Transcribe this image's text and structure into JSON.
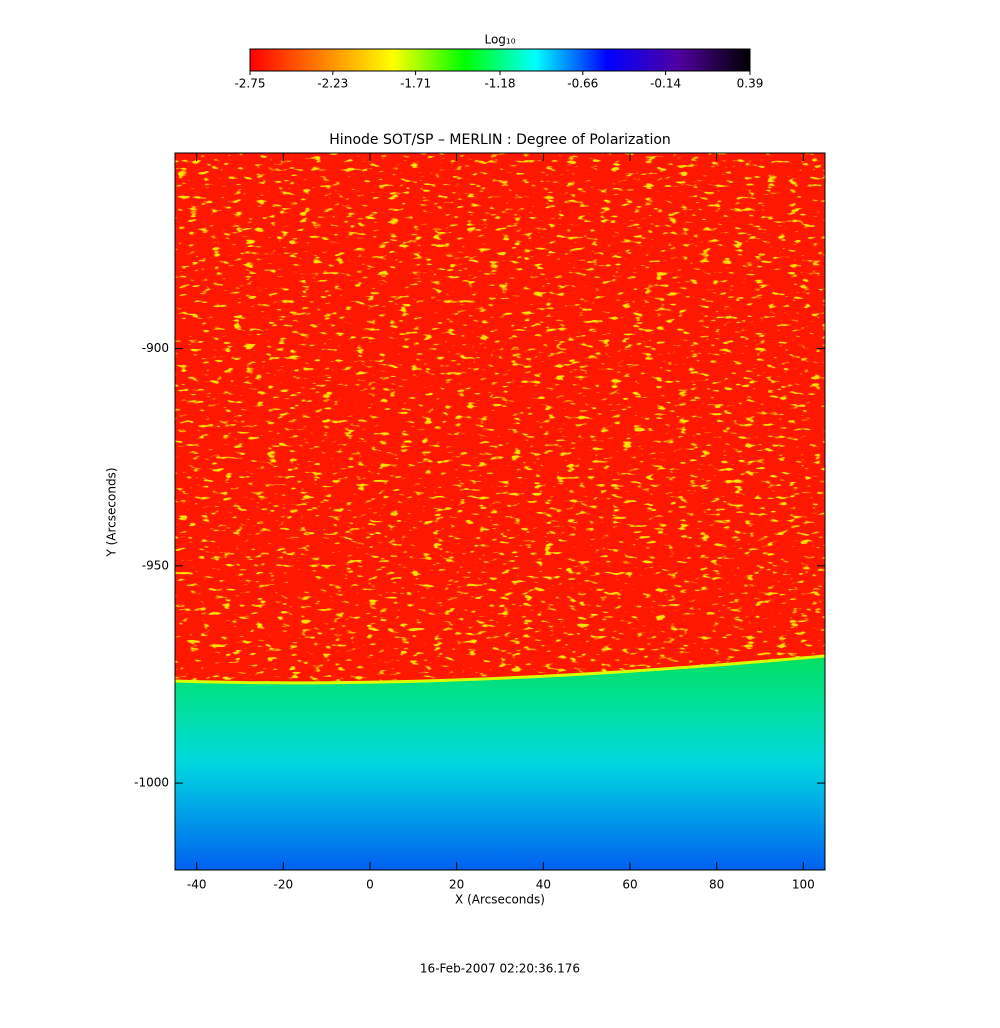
{
  "chart_data": {
    "type": "image",
    "title": "Hinode SOT/SP – MERLIN : Degree of Polarization",
    "x_label": "X (Arcseconds)",
    "y_label": "Y (Arcseconds)",
    "xlim": [
      -45,
      105
    ],
    "xticks": [
      -40,
      -20,
      0,
      20,
      40,
      60,
      80,
      100
    ],
    "ylim": [
      -1020,
      -855
    ],
    "yticks": [
      -1000,
      -950,
      -900
    ],
    "colorbar": {
      "label": "Log₁₀",
      "lim": [
        -2.75,
        0.39
      ],
      "ticks": [
        -2.75,
        -2.23,
        -1.71,
        -1.18,
        -0.66,
        -0.14,
        0.39
      ],
      "colormap": [
        "#ff0000",
        "#ff8000",
        "#ffff00",
        "#00ff00",
        "#00ffff",
        "#0000ff",
        "#5000a0",
        "#000000"
      ]
    },
    "footer": "16-Feb-2007 02:20:36.176"
  }
}
